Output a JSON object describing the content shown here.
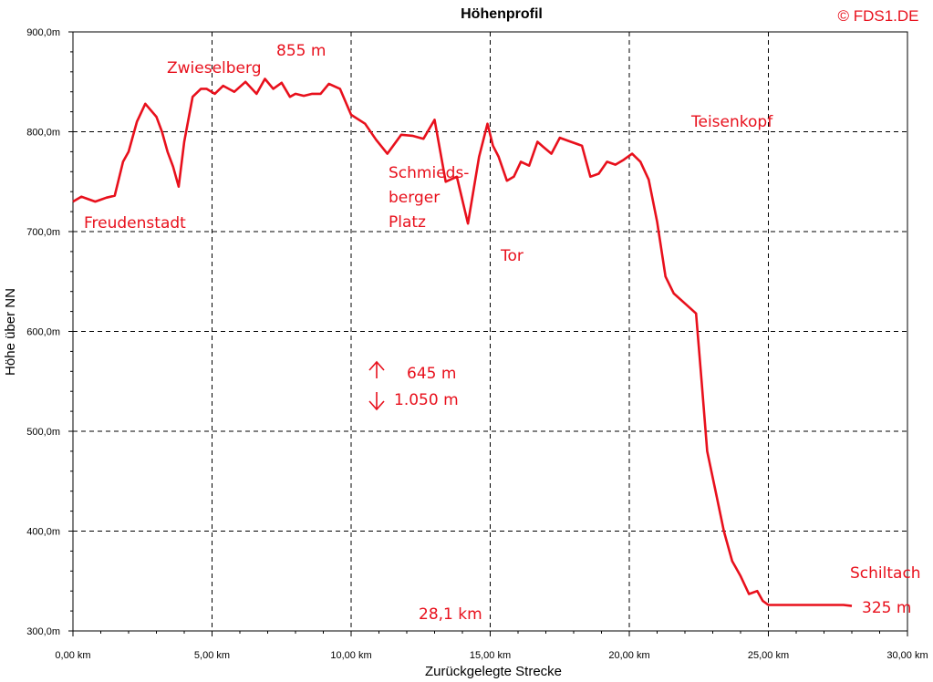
{
  "colors": {
    "line": "#e8101c",
    "annotation": "#e8101c",
    "axis": "#000000"
  },
  "header": {
    "title": "Höhenprofil",
    "copyright": "© FDS1.DE"
  },
  "chart_data": {
    "type": "line",
    "title": "Höhenprofil",
    "xlabel": "Zurückgelegte Strecke",
    "ylabel": "Höhe über NN",
    "xlim": [
      0,
      30
    ],
    "ylim": [
      300,
      900
    ],
    "grid": true,
    "x_ticks": [
      "0,00 km",
      "5,00 km",
      "10,00 km",
      "15,00 km",
      "20,00 km",
      "25,00 km",
      "30,00 km"
    ],
    "y_ticks": [
      "300,0m",
      "400,0m",
      "500,0m",
      "600,0m",
      "700,0m",
      "800,0m",
      "900,0m"
    ],
    "series": [
      {
        "x": [
          0,
          0.3,
          0.5,
          0.8,
          1.0,
          1.2,
          1.5,
          1.8,
          2.0,
          2.3,
          2.6,
          3.0,
          3.2,
          3.4,
          3.6,
          3.8,
          4.0,
          4.3,
          4.6,
          4.8,
          5.1,
          5.4,
          5.8,
          6.2,
          6.6,
          6.9,
          7.2,
          7.5,
          7.8,
          8.0,
          8.3,
          8.6,
          8.9,
          9.2,
          9.6,
          10.0,
          10.5,
          10.9,
          11.3,
          11.8,
          12.2,
          12.6,
          13.0,
          13.4,
          13.8,
          14.2,
          14.6,
          14.9,
          15.1,
          15.3,
          15.6,
          15.85,
          16.1,
          16.4,
          16.7,
          16.9,
          17.2,
          17.5,
          17.9,
          18.3,
          18.6,
          18.9,
          19.2,
          19.5,
          19.8,
          20.1,
          20.4,
          20.7,
          21.0,
          21.3,
          21.6,
          22.0,
          22.4,
          22.6,
          22.8,
          23.1,
          23.4,
          23.7,
          24.0,
          24.3,
          24.6,
          24.8,
          25.0,
          25.3,
          25.7,
          26.1,
          26.5,
          26.9,
          27.3,
          27.5,
          27.7,
          28.0
        ],
        "values": [
          730,
          735,
          733,
          730,
          732,
          734,
          736,
          770,
          780,
          810,
          828,
          815,
          800,
          780,
          765,
          745,
          790,
          835,
          843,
          843,
          838,
          846,
          840,
          850,
          838,
          853,
          843,
          849,
          835,
          838,
          836,
          838,
          838,
          848,
          843,
          817,
          808,
          792,
          778,
          797,
          796,
          793,
          812,
          750,
          755,
          708,
          775,
          808,
          786,
          775,
          751,
          755,
          770,
          766,
          790,
          785,
          778,
          794,
          790,
          786,
          755,
          758,
          770,
          767,
          772,
          778,
          770,
          752,
          710,
          655,
          638,
          628,
          618,
          550,
          480,
          440,
          400,
          370,
          355,
          337,
          340,
          330,
          326,
          326,
          326,
          326,
          326,
          326,
          326,
          326,
          326,
          325
        ]
      }
    ],
    "annotations": [
      "Zwieselberg",
      "855 m",
      "Teisenkopf",
      "Freudenstadt",
      "Schmieds-",
      "berger",
      "Platz",
      "Tor",
      "645 m",
      "1.050 m",
      "28,1 km",
      "Schiltach",
      "325 m"
    ]
  }
}
